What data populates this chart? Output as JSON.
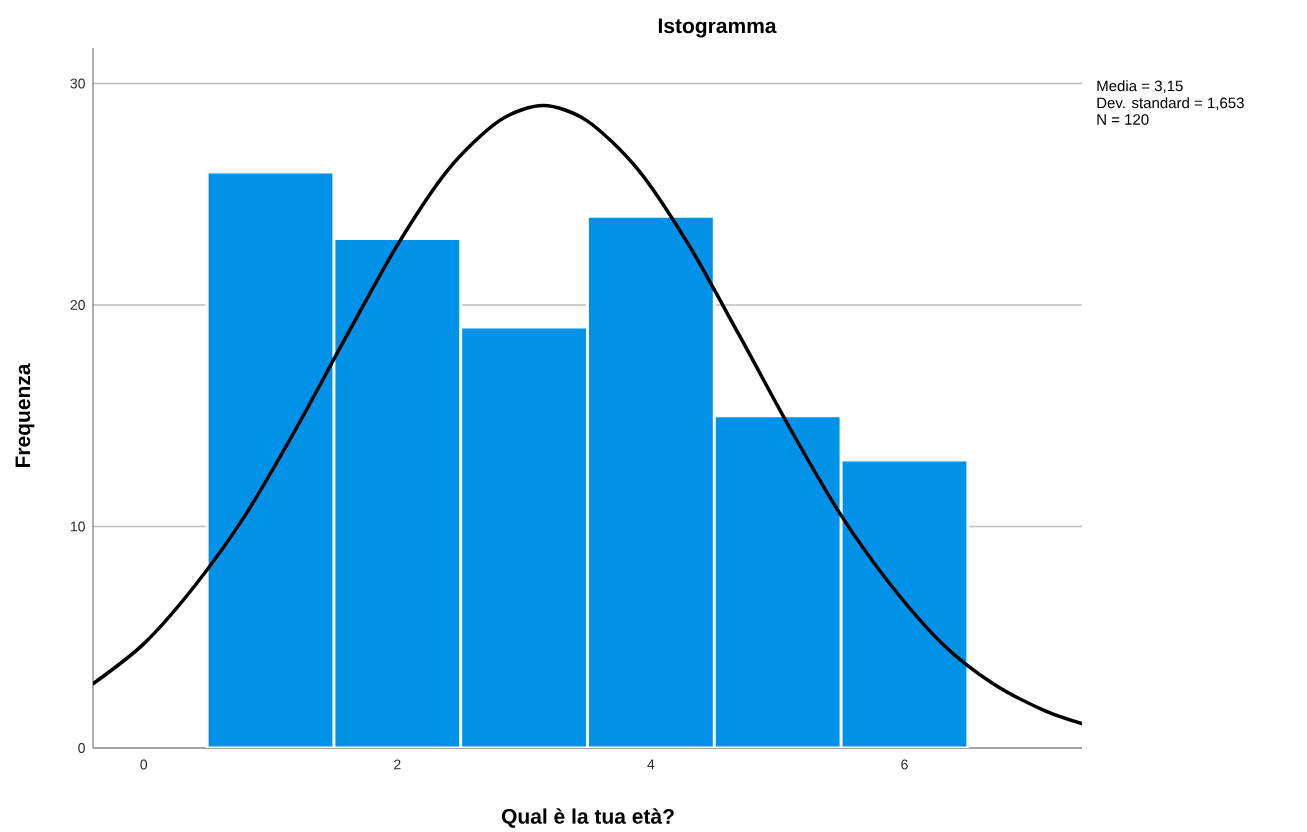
{
  "chart_data": {
    "type": "histogram",
    "title": "Istogramma",
    "xlabel": "Qual è la tua età?",
    "ylabel": "Frequenza",
    "bins": [
      0.5,
      1.5,
      2.5,
      3.5,
      4.5,
      5.5,
      6.5
    ],
    "series": [
      {
        "color": "#0091e8",
        "values": [
          26,
          23,
          19,
          24,
          15,
          13
        ]
      },
      {
        "type": "line",
        "color": "#000000",
        "marker": "none",
        "x": [
          -0.4,
          0,
          0.4,
          0.8,
          1.2,
          1.6,
          2.0,
          2.4,
          2.8,
          3.15,
          3.5,
          3.9,
          4.3,
          4.7,
          5.1,
          5.5,
          5.9,
          6.3,
          6.7,
          7.1,
          7.4
        ],
        "values": [
          2.9,
          4.7,
          7.3,
          10.5,
          14.4,
          18.6,
          22.7,
          26.1,
          28.3,
          29.0,
          28.3,
          26.1,
          22.7,
          18.6,
          14.4,
          10.5,
          7.3,
          4.7,
          2.9,
          1.7,
          1.1
        ]
      }
    ],
    "xlim": [
      -0.4,
      7.4
    ],
    "ylim": [
      0,
      31.6
    ],
    "xticks": [
      0,
      2,
      4,
      6
    ],
    "yticks": [
      0,
      10,
      20,
      30
    ],
    "grid": "y",
    "annotations": [
      "Media = 3,15",
      "Dev. standard = 1,653",
      "N = 120"
    ]
  }
}
